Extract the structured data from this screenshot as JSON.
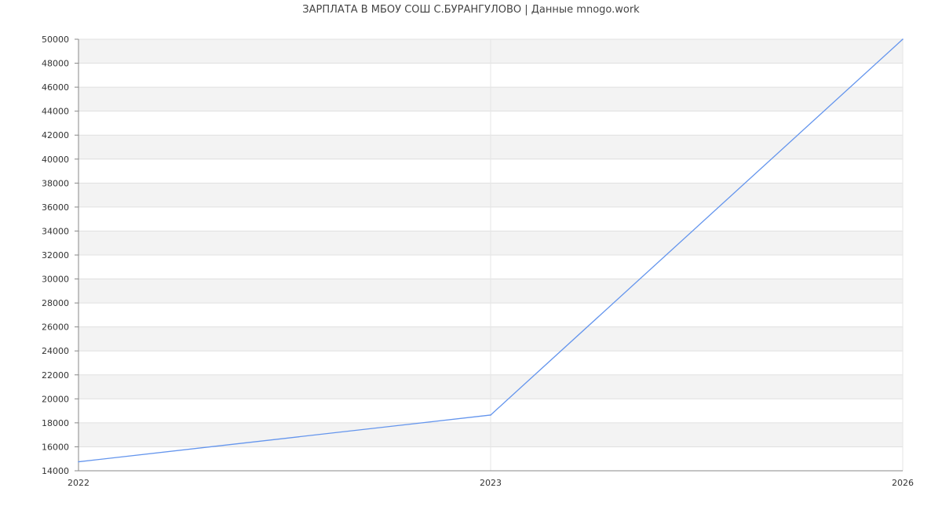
{
  "chart_data": {
    "type": "line",
    "title": "ЗАРПЛАТА В МБОУ СОШ С.БУРАНГУЛОВО | Данные mnogo.work",
    "categories": [
      "2022",
      "2023",
      "2026"
    ],
    "series": [
      {
        "values": [
          14750,
          18650,
          50000
        ],
        "color": "#6495ed"
      }
    ],
    "xlabel": "",
    "ylabel": "",
    "ylim": [
      14000,
      50000
    ],
    "yticks": [
      14000,
      16000,
      18000,
      20000,
      22000,
      24000,
      26000,
      28000,
      30000,
      32000,
      34000,
      36000,
      38000,
      40000,
      42000,
      44000,
      46000,
      48000,
      50000
    ],
    "grid": true,
    "band_colors": [
      "#ffffff",
      "#f3f3f3"
    ]
  }
}
